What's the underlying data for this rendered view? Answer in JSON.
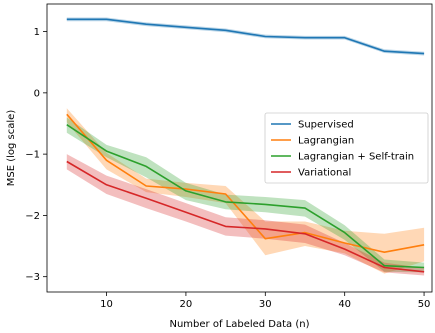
{
  "chart_data": {
    "type": "line",
    "xlabel": "Number of Labeled Data (n)",
    "ylabel": "MSE (log scale)",
    "xlim": [
      2.5,
      51
    ],
    "ylim": [
      -3.25,
      1.45
    ],
    "xticks": [
      10,
      20,
      30,
      40,
      50
    ],
    "yticks": [
      1,
      0,
      -1,
      -2,
      -3
    ],
    "grid": false,
    "legend_position": "center-right",
    "x": [
      5,
      10,
      15,
      20,
      25,
      30,
      35,
      40,
      45,
      50
    ],
    "series": [
      {
        "name": "Supervised",
        "color": "#1f77b4",
        "values": [
          1.2,
          1.2,
          1.12,
          1.07,
          1.02,
          0.92,
          0.9,
          0.9,
          0.68,
          0.64
        ],
        "lower": [
          1.17,
          1.17,
          1.09,
          1.04,
          0.99,
          0.89,
          0.87,
          0.87,
          0.65,
          0.61
        ],
        "upper": [
          1.23,
          1.23,
          1.15,
          1.1,
          1.05,
          0.95,
          0.93,
          0.93,
          0.71,
          0.67
        ]
      },
      {
        "name": "Lagrangian",
        "color": "#ff7f0e",
        "values": [
          -0.35,
          -1.1,
          -1.52,
          -1.57,
          -1.65,
          -2.38,
          -2.28,
          -2.45,
          -2.6,
          -2.48
        ],
        "lower": [
          -0.48,
          -1.25,
          -1.62,
          -1.7,
          -1.8,
          -2.65,
          -2.5,
          -2.62,
          -2.95,
          -2.75
        ],
        "upper": [
          -0.25,
          -0.98,
          -1.4,
          -1.47,
          -1.52,
          -2.1,
          -2.1,
          -2.25,
          -2.3,
          -2.2
        ]
      },
      {
        "name": "Lagrangian + Self-train",
        "color": "#2ca02c",
        "values": [
          -0.52,
          -0.95,
          -1.2,
          -1.6,
          -1.78,
          -1.82,
          -1.88,
          -2.28,
          -2.82,
          -2.85
        ],
        "lower": [
          -0.65,
          -1.05,
          -1.38,
          -1.75,
          -1.9,
          -1.95,
          -2.02,
          -2.4,
          -2.92,
          -2.93
        ],
        "upper": [
          -0.4,
          -0.85,
          -1.05,
          -1.47,
          -1.66,
          -1.7,
          -1.75,
          -2.16,
          -2.72,
          -2.77
        ]
      },
      {
        "name": "Variational",
        "color": "#d62728",
        "values": [
          -1.12,
          -1.5,
          -1.72,
          -1.95,
          -2.18,
          -2.22,
          -2.3,
          -2.55,
          -2.85,
          -2.92
        ],
        "lower": [
          -1.25,
          -1.65,
          -1.88,
          -2.1,
          -2.33,
          -2.38,
          -2.45,
          -2.65,
          -2.93,
          -2.98
        ],
        "upper": [
          -1.0,
          -1.35,
          -1.57,
          -1.8,
          -2.03,
          -2.08,
          -2.15,
          -2.45,
          -2.77,
          -2.86
        ]
      }
    ]
  }
}
